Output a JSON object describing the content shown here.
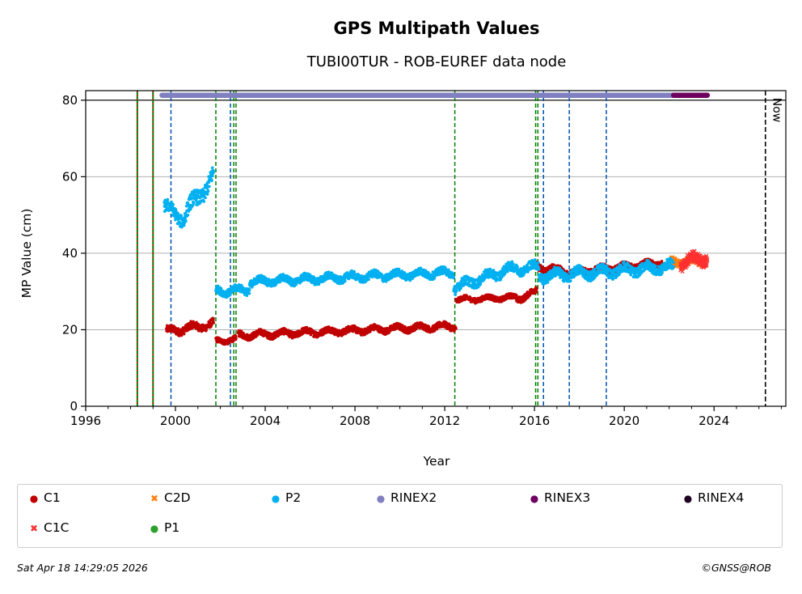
{
  "chart_data": {
    "type": "scatter",
    "title": "GPS Multipath Values",
    "subtitle": "TUBI00TUR - ROB-EUREF data node",
    "xlabel": "Year",
    "ylabel": "MP Value (cm)",
    "xlim": [
      1996,
      2027.2
    ],
    "ylim": [
      0,
      82.5
    ],
    "x_ticks": [
      1996,
      2000,
      2004,
      2008,
      2012,
      2016,
      2020,
      2024
    ],
    "y_ticks": [
      0,
      20,
      40,
      60,
      80
    ],
    "grid": "horizontal",
    "now_label": "Now",
    "now_year": 2026.29,
    "reference_line_y": 80,
    "series": [
      {
        "name": "C1",
        "color": "#c00000",
        "marker": "dot",
        "segments": [
          {
            "x0": 1999.6,
            "x1": 2001.7,
            "y0": 19.5,
            "y1": 21.5,
            "noise": 1.2
          },
          {
            "x0": 2001.8,
            "x1": 2002.7,
            "y0": 17,
            "y1": 17.5,
            "noise": 0.8
          },
          {
            "x0": 2002.8,
            "x1": 2012.5,
            "y0": 18.5,
            "y1": 21,
            "noise": 1.0
          },
          {
            "x0": 2012.5,
            "x1": 2015.2,
            "y0": 27.8,
            "y1": 28.5,
            "noise": 0.8
          },
          {
            "x0": 2015.2,
            "x1": 2016.1,
            "y0": 28,
            "y1": 30,
            "noise": 1.0
          },
          {
            "x0": 2016.1,
            "x1": 2017.5,
            "y0": 36.5,
            "y1": 35,
            "noise": 1.2
          },
          {
            "x0": 2017.5,
            "x1": 2021.7,
            "y0": 35,
            "y1": 37.5,
            "noise": 1.0
          }
        ]
      },
      {
        "name": "C2D",
        "color": "#ff7f0e",
        "marker": "x",
        "segments": [
          {
            "x0": 2022.1,
            "x1": 2023.6,
            "y0": 37.5,
            "y1": 38,
            "noise": 1.2
          }
        ]
      },
      {
        "name": "P2",
        "color": "#00b0f0",
        "marker": "dot",
        "segments": [
          {
            "x0": 1999.5,
            "x1": 2000.4,
            "y0": 52,
            "y1": 49,
            "noise": 2.0
          },
          {
            "x0": 2000.4,
            "x1": 2001.7,
            "y0": 50,
            "y1": 60,
            "noise": 2.5
          },
          {
            "x0": 2001.8,
            "x1": 2003.3,
            "y0": 30,
            "y1": 30.5,
            "noise": 1.2
          },
          {
            "x0": 2003.3,
            "x1": 2012.4,
            "y0": 32.5,
            "y1": 35,
            "noise": 1.2
          },
          {
            "x0": 2012.4,
            "x1": 2014.5,
            "y0": 31,
            "y1": 35,
            "noise": 1.5
          },
          {
            "x0": 2014.5,
            "x1": 2016.2,
            "y0": 35.5,
            "y1": 36.5,
            "noise": 1.5
          },
          {
            "x0": 2016.2,
            "x1": 2022.2,
            "y0": 34,
            "y1": 36.5,
            "noise": 1.6
          }
        ]
      },
      {
        "name": "C1C",
        "color": "#ff3030",
        "marker": "x",
        "segments": [
          {
            "x0": 2022.5,
            "x1": 2023.7,
            "y0": 37.5,
            "y1": 39,
            "noise": 1.8
          }
        ]
      },
      {
        "name": "P1",
        "color": "#2ca02c",
        "marker": "dot",
        "segments": []
      },
      {
        "name": "RINEX2",
        "color": "#8080c0",
        "marker": "dot",
        "segments": [
          {
            "x0": 1999.4,
            "x1": 2022.2,
            "y0": 81.3,
            "y1": 81.3,
            "noise": 0
          }
        ]
      },
      {
        "name": "RINEX3",
        "color": "#700060",
        "marker": "dot",
        "segments": [
          {
            "x0": 2022.2,
            "x1": 2023.7,
            "y0": 81.3,
            "y1": 81.3,
            "noise": 0
          }
        ]
      },
      {
        "name": "RINEX4",
        "color": "#200020",
        "marker": "dot",
        "segments": []
      }
    ],
    "event_lines": [
      {
        "year": 1998.3,
        "style": "red-green"
      },
      {
        "year": 1999.0,
        "style": "red-green"
      },
      {
        "year": 1999.8,
        "style": "blue"
      },
      {
        "year": 2001.8,
        "style": "green"
      },
      {
        "year": 2002.45,
        "style": "blue"
      },
      {
        "year": 2002.6,
        "style": "green"
      },
      {
        "year": 2002.7,
        "style": "green"
      },
      {
        "year": 2012.45,
        "style": "green"
      },
      {
        "year": 2016.05,
        "style": "green"
      },
      {
        "year": 2016.15,
        "style": "green"
      },
      {
        "year": 2016.4,
        "style": "blue"
      },
      {
        "year": 2017.55,
        "style": "blue"
      },
      {
        "year": 2019.2,
        "style": "blue"
      }
    ]
  },
  "legend": [
    {
      "label": "C1",
      "color": "#c00000",
      "marker": "●"
    },
    {
      "label": "C2D",
      "color": "#ff7f0e",
      "marker": "✖"
    },
    {
      "label": "P2",
      "color": "#00b0f0",
      "marker": "●"
    },
    {
      "label": "RINEX2",
      "color": "#8080c0",
      "marker": "●"
    },
    {
      "label": "RINEX3",
      "color": "#700060",
      "marker": "●"
    },
    {
      "label": "RINEX4",
      "color": "#200020",
      "marker": "●"
    },
    {
      "label": "C1C",
      "color": "#ff3030",
      "marker": "✖"
    },
    {
      "label": "P1",
      "color": "#2ca02c",
      "marker": "●"
    }
  ],
  "footer": {
    "timestamp": "Sat Apr 18 14:29:05 2026",
    "copyright": "©GNSS@ROB"
  }
}
